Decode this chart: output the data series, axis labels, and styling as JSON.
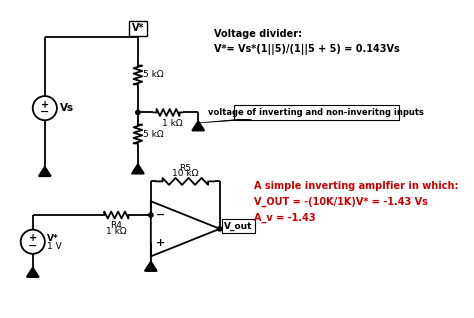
{
  "bg_color": "#ffffff",
  "line_color": "#000000",
  "red_color": "#cc0000",
  "title_top_right": "Voltage divider:\nV*= Vs*(1||5)/(1||5 + 5) = 0.143Vs",
  "annotation_box": "voltage of inverting and non-inveritng inputs",
  "red_text_line1": "A simple inverting amplfier in which:",
  "red_text_line2": "V_OUT = -(10K/1K)V* = -1.43 Vs",
  "red_text_line3": "A_v = -1.43",
  "label_vs": "Vs",
  "label_5k_top": "5 kΩ",
  "label_1k_right": "1 kΩ",
  "label_5k_bot": "5 kΩ",
  "label_vstar": "V*",
  "label_r5": "R5",
  "label_10k": "10 kΩ",
  "label_r4": "R4",
  "label_1k_r4": "1 kΩ",
  "label_vstar2_line1": "V*",
  "label_vstar2_line2": "1 V",
  "label_vout": "V_out"
}
